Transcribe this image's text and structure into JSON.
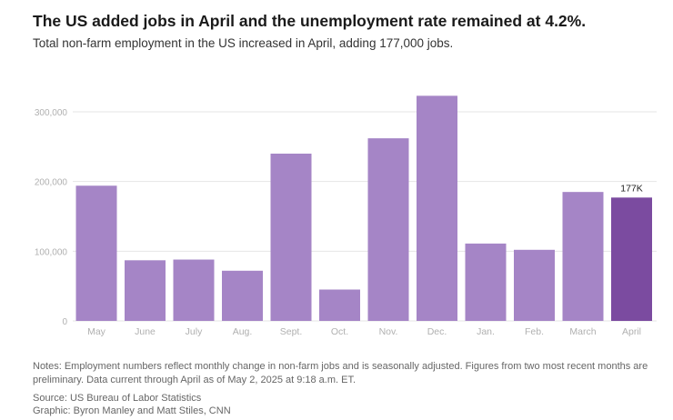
{
  "header": {
    "title": "The US added jobs in April and the unemployment rate remained at 4.2%.",
    "subtitle": "Total non-farm employment in the US increased in April, adding 177,000 jobs."
  },
  "chart_data": {
    "type": "bar",
    "categories": [
      "May",
      "June",
      "July",
      "Aug.",
      "Sept.",
      "Oct.",
      "Nov.",
      "Dec.",
      "Jan.",
      "Feb.",
      "March",
      "April"
    ],
    "values": [
      194000,
      87000,
      88000,
      72000,
      240000,
      45000,
      262000,
      323000,
      111000,
      102000,
      185000,
      177000
    ],
    "ylim": [
      0,
      300000
    ],
    "yticks": [
      0,
      100000,
      200000,
      300000
    ],
    "ytick_labels": [
      "0",
      "100,000",
      "200,000",
      "300,000"
    ],
    "grid": true,
    "highlight_index": 11,
    "highlight_label": "177K",
    "colors": {
      "bar": "#a585c6",
      "highlight": "#7b4ba0",
      "grid": "#e6e6e6",
      "tick": "#b0b0b0"
    }
  },
  "footer": {
    "notes": "Notes: Employment numbers reflect monthly change in non-farm jobs and is seasonally adjusted. Figures from two most recent months are preliminary. Data current through April as of May 2, 2025 at 9:18 a.m. ET.",
    "source": "Source: US Bureau of Labor Statistics",
    "graphic": "Graphic: Byron Manley and Matt Stiles, CNN"
  }
}
